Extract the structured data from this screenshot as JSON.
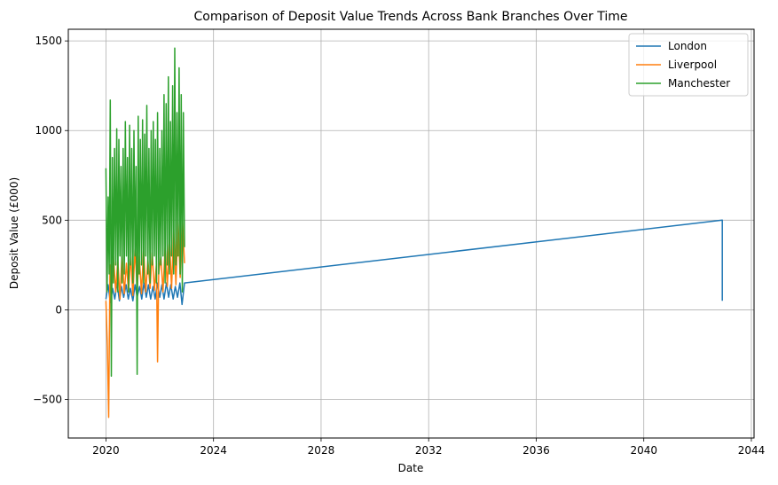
{
  "chart_data": {
    "type": "line",
    "title": "Comparison of Deposit Value Trends Across Bank Branches Over Time",
    "xlabel": "Date",
    "ylabel": "Deposit Value (£000)",
    "xlim": [
      2018.6,
      2044.1
    ],
    "ylim": [
      -715,
      1565
    ],
    "xticks": [
      2020,
      2024,
      2028,
      2032,
      2036,
      2040,
      2044
    ],
    "yticks": [
      -500,
      0,
      500,
      1000,
      1500
    ],
    "grid": true,
    "legend_position": "top-right",
    "series": [
      {
        "name": "London",
        "color": "#1f77b4",
        "x": [
          2020.0,
          2020.08,
          2020.16,
          2020.25,
          2020.33,
          2020.41,
          2020.5,
          2020.58,
          2020.66,
          2020.75,
          2020.83,
          2020.91,
          2021.0,
          2021.08,
          2021.16,
          2021.25,
          2021.33,
          2021.41,
          2021.5,
          2021.58,
          2021.66,
          2021.75,
          2021.83,
          2021.91,
          2022.0,
          2022.08,
          2022.16,
          2022.25,
          2022.33,
          2022.41,
          2022.5,
          2022.58,
          2022.66,
          2022.75,
          2022.83,
          2022.92,
          2042.92,
          2042.92
        ],
        "values": [
          60,
          140,
          40,
          120,
          60,
          150,
          50,
          130,
          70,
          140,
          60,
          120,
          50,
          140,
          70,
          130,
          60,
          150,
          70,
          140,
          60,
          130,
          60,
          150,
          70,
          140,
          60,
          150,
          70,
          140,
          60,
          130,
          70,
          150,
          30,
          150,
          500,
          50
        ]
      },
      {
        "name": "Liverpool",
        "color": "#ff7f0e",
        "x": [
          2020.0,
          2020.05,
          2020.1,
          2020.15,
          2020.2,
          2020.28,
          2020.36,
          2020.44,
          2020.52,
          2020.6,
          2020.68,
          2020.76,
          2020.84,
          2020.92,
          2021.0,
          2021.08,
          2021.16,
          2021.24,
          2021.32,
          2021.4,
          2021.48,
          2021.56,
          2021.64,
          2021.72,
          2021.8,
          2021.88,
          2021.92,
          2021.96,
          2022.04,
          2022.12,
          2022.2,
          2022.28,
          2022.36,
          2022.44,
          2022.52,
          2022.6,
          2022.68,
          2022.76,
          2022.84,
          2022.92
        ],
        "values": [
          50,
          -200,
          -600,
          250,
          80,
          300,
          100,
          280,
          60,
          320,
          90,
          260,
          100,
          300,
          80,
          340,
          120,
          300,
          90,
          350,
          100,
          280,
          120,
          320,
          110,
          260,
          -290,
          200,
          300,
          100,
          350,
          130,
          400,
          120,
          450,
          140,
          500,
          180,
          520,
          260
        ]
      },
      {
        "name": "Manchester",
        "color": "#2ca02c",
        "x": [
          2020.0,
          2020.04,
          2020.08,
          2020.12,
          2020.16,
          2020.2,
          2020.24,
          2020.28,
          2020.32,
          2020.36,
          2020.4,
          2020.44,
          2020.48,
          2020.52,
          2020.56,
          2020.6,
          2020.64,
          2020.68,
          2020.72,
          2020.76,
          2020.8,
          2020.84,
          2020.88,
          2020.92,
          2020.96,
          2021.0,
          2021.04,
          2021.08,
          2021.12,
          2021.16,
          2021.2,
          2021.24,
          2021.28,
          2021.32,
          2021.36,
          2021.4,
          2021.44,
          2021.48,
          2021.52,
          2021.56,
          2021.6,
          2021.64,
          2021.68,
          2021.72,
          2021.76,
          2021.8,
          2021.84,
          2021.88,
          2021.92,
          2021.96,
          2022.0,
          2022.04,
          2022.08,
          2022.12,
          2022.16,
          2022.2,
          2022.24,
          2022.28,
          2022.32,
          2022.36,
          2022.4,
          2022.44,
          2022.48,
          2022.52,
          2022.56,
          2022.6,
          2022.64,
          2022.68,
          2022.72,
          2022.76,
          2022.8,
          2022.84,
          2022.88,
          2022.92
        ],
        "values": [
          790,
          100,
          630,
          200,
          1170,
          -370,
          850,
          150,
          900,
          250,
          1010,
          100,
          950,
          300,
          800,
          150,
          900,
          200,
          1050,
          300,
          850,
          100,
          1030,
          250,
          900,
          150,
          1000,
          300,
          800,
          -360,
          1080,
          200,
          950,
          250,
          1060,
          150,
          980,
          300,
          1140,
          200,
          900,
          150,
          1000,
          250,
          1050,
          300,
          950,
          150,
          1100,
          200,
          900,
          250,
          1000,
          300,
          1200,
          150,
          1150,
          250,
          1300,
          200,
          1050,
          300,
          1250,
          200,
          1460,
          250,
          1100,
          300,
          1350,
          200,
          1200,
          100,
          1100,
          350
        ]
      }
    ]
  }
}
